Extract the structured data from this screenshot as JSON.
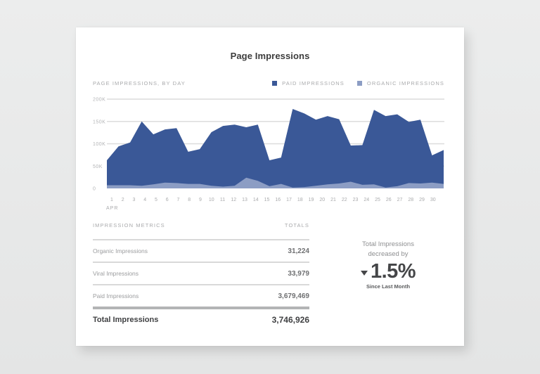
{
  "card": {
    "title": "Page Impressions"
  },
  "chart_section": {
    "label": "PAGE IMPRESSIONS, BY DAY",
    "legend": [
      {
        "label": "PAID IMPRESSIONS",
        "color": "#3a5897"
      },
      {
        "label": "ORGANIC IMPRESSIONS",
        "color": "#8c9dc4"
      }
    ]
  },
  "chart_data": {
    "type": "area",
    "stacked": true,
    "title": "Page Impressions",
    "subtitle": "PAGE IMPRESSIONS, BY DAY",
    "xlabel": "APR",
    "ylabel": "",
    "x": [
      1,
      2,
      3,
      4,
      5,
      6,
      7,
      8,
      9,
      10,
      11,
      12,
      13,
      14,
      15,
      16,
      17,
      18,
      19,
      20,
      21,
      22,
      23,
      24,
      25,
      26,
      27,
      28,
      29,
      30
    ],
    "x_tick_labels": [
      "1",
      "2",
      "3",
      "4",
      "5",
      "6",
      "7",
      "8",
      "9",
      "10",
      "11",
      "12",
      "13",
      "14",
      "15",
      "16",
      "17",
      "18",
      "19",
      "20",
      "21",
      "22",
      "23",
      "24",
      "25",
      "26",
      "27",
      "28",
      "29",
      "30"
    ],
    "x_sub_label": "APR",
    "y_tick_labels": [
      "0",
      "50K",
      "100K",
      "150K",
      "200K"
    ],
    "ylim": [
      0,
      200000
    ],
    "grid": true,
    "legend_position": "top-right",
    "series": [
      {
        "name": "Organic Impressions",
        "color": "#8c9dc4",
        "values": [
          7000,
          7000,
          7000,
          6000,
          9000,
          13000,
          12000,
          10000,
          10000,
          6000,
          4000,
          6000,
          24000,
          17000,
          5000,
          10000,
          2000,
          3000,
          6000,
          9000,
          11000,
          15000,
          8000,
          9000,
          2000,
          5000,
          12000,
          11000,
          13000,
          10000
        ]
      },
      {
        "name": "Paid Impressions (stack total)",
        "color": "#3a5897",
        "values": [
          63000,
          94000,
          103000,
          150000,
          121000,
          132000,
          135000,
          82000,
          88000,
          126000,
          140000,
          143000,
          137000,
          143000,
          63000,
          69000,
          178000,
          168000,
          154000,
          162000,
          155000,
          96000,
          97000,
          176000,
          162000,
          166000,
          149000,
          154000,
          74000,
          86000
        ]
      }
    ]
  },
  "metrics": {
    "header_label": "IMPRESSION METRICS",
    "header_totals": "TOTALS",
    "rows": [
      {
        "name": "Organic Impressions",
        "value": "31,224"
      },
      {
        "name": "Viral Impressions",
        "value": "33,979"
      },
      {
        "name": "Paid Impressions",
        "value": "3,679,469"
      }
    ],
    "total": {
      "name": "Total Impressions",
      "value": "3,746,926"
    }
  },
  "summary": {
    "line1": "Total Impressions",
    "line2": "decreased by",
    "direction_icon": "triangle-down-icon",
    "percent": "1.5%",
    "since": "Since Last Month"
  }
}
